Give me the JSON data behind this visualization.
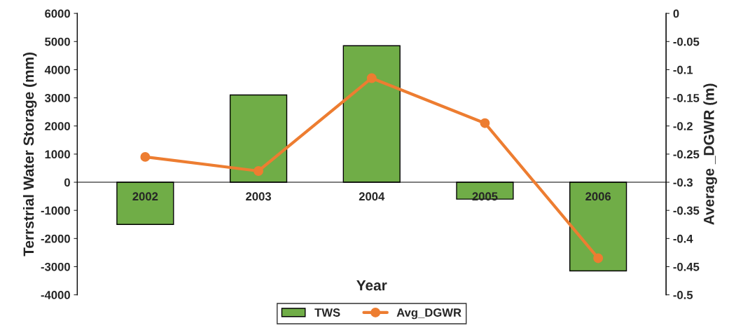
{
  "chart_data": {
    "type": "bar",
    "xlabel": "Year",
    "ylabel": "Terrstrial Water Storage (mm)",
    "y2label": "Average _DGWR (m)",
    "categories": [
      "2002",
      "2003",
      "2004",
      "2005",
      "2006"
    ],
    "series": [
      {
        "name": "TWS",
        "color": "#70ad47",
        "values": [
          -1500,
          3100,
          4850,
          -600,
          -3150
        ]
      },
      {
        "name": "Avg_DGWR",
        "type": "line",
        "axis": "y2",
        "color": "#ed7d31",
        "marker": "circle",
        "values": [
          -0.255,
          -0.28,
          -0.115,
          -0.195,
          -0.435
        ]
      }
    ],
    "ylim": [
      -4000,
      6000
    ],
    "yticks": [
      -4000,
      -3000,
      -2000,
      -1000,
      0,
      1000,
      2000,
      3000,
      4000,
      5000,
      6000
    ],
    "y2lim": [
      -0.5,
      0
    ],
    "y2ticks": [
      -0.5,
      -0.45,
      -0.4,
      -0.35,
      -0.3,
      -0.25,
      -0.2,
      -0.15,
      -0.1,
      -0.05,
      0
    ],
    "grid": false,
    "legend": "bottom"
  }
}
